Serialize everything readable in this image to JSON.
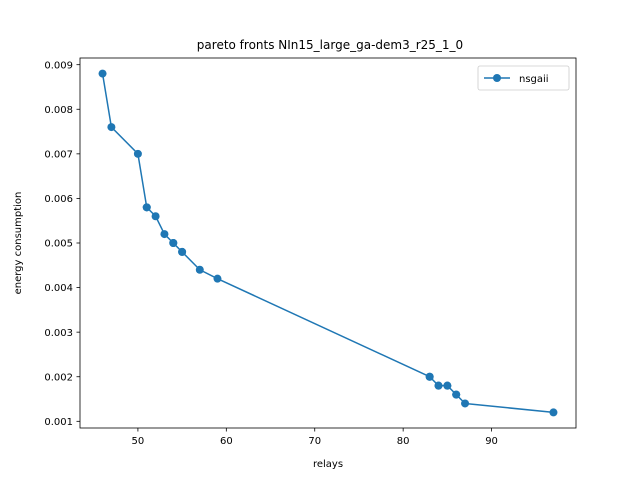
{
  "chart_data": {
    "type": "line",
    "title": "pareto fronts NIn15_large_ga-dem3_r25_1_0",
    "xlabel": "relays",
    "ylabel": "energy consumption",
    "xlim": [
      43.45,
      99.55
    ],
    "ylim": [
      0.00085,
      0.00915
    ],
    "xticks": [
      50,
      60,
      70,
      80,
      90
    ],
    "xtick_labels": [
      "50",
      "60",
      "70",
      "80",
      "90"
    ],
    "yticks": [
      0.001,
      0.002,
      0.003,
      0.004,
      0.005,
      0.006,
      0.007,
      0.008,
      0.009
    ],
    "ytick_labels": [
      "0.001",
      "0.002",
      "0.003",
      "0.004",
      "0.005",
      "0.006",
      "0.007",
      "0.008",
      "0.009"
    ],
    "grid": false,
    "legend_position": "top-right",
    "series": [
      {
        "name": "nsgaii",
        "color": "#1f77b4",
        "marker": "circle",
        "x": [
          46,
          47,
          50,
          51,
          51,
          52,
          53,
          54,
          54,
          55,
          55,
          57,
          59,
          83,
          83,
          84,
          84,
          85,
          85,
          86,
          86,
          87,
          97
        ],
        "y": [
          0.0088,
          0.0076,
          0.007,
          0.0058,
          0.0058,
          0.0056,
          0.0052,
          0.005,
          0.005,
          0.0048,
          0.0048,
          0.0044,
          0.0042,
          0.002,
          0.002,
          0.0018,
          0.0018,
          0.0018,
          0.0018,
          0.0016,
          0.0016,
          0.0014,
          0.0012
        ]
      }
    ]
  }
}
